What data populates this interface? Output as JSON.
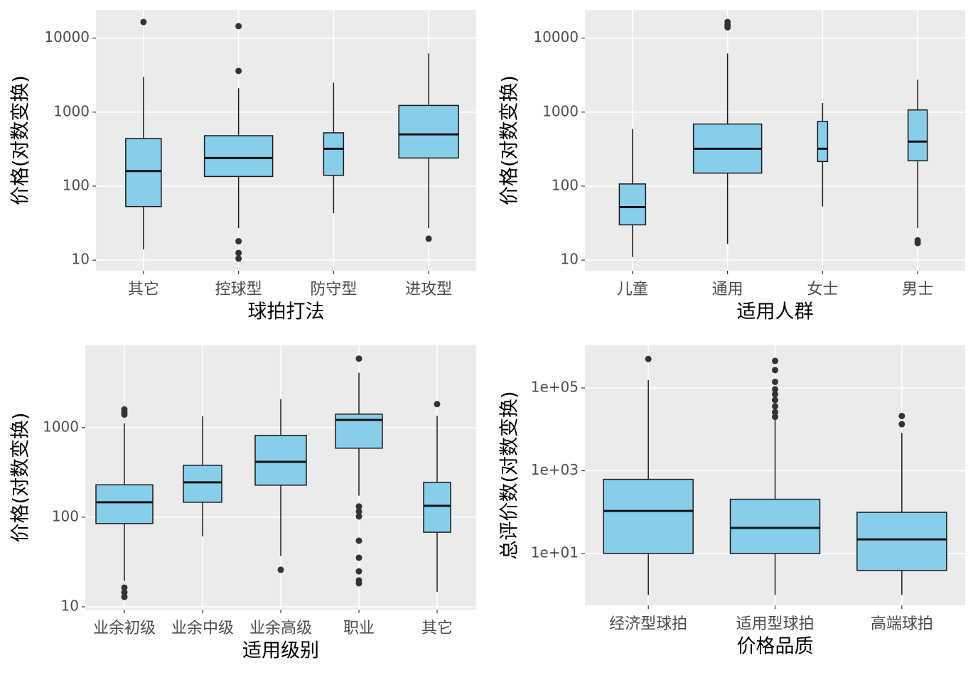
{
  "chart_data": [
    {
      "type": "box",
      "x_label": "球拍打法",
      "y_label": "价格(对数变换)",
      "log_y": true,
      "grid": true,
      "color": "#87ceeb",
      "categories": [
        "其它",
        "控球型",
        "防守型",
        "进攻型"
      ],
      "ylim": [
        7.2,
        24000
      ],
      "yticks": [
        10,
        100,
        1000,
        10000
      ],
      "boxes": [
        {
          "whislo": 14,
          "q1": 53,
          "med": 160,
          "q3": 440,
          "whishi": 3000,
          "outliers": [
            16500
          ]
        },
        {
          "whislo": 27,
          "q1": 135,
          "med": 240,
          "q3": 480,
          "whishi": 2100,
          "outliers": [
            14500,
            3600,
            18,
            12.5,
            10.5
          ]
        },
        {
          "whislo": 43,
          "q1": 140,
          "med": 320,
          "q3": 525,
          "whishi": 2500,
          "outliers": []
        },
        {
          "whislo": 27,
          "q1": 240,
          "med": 500,
          "q3": 1230,
          "whishi": 6200,
          "outliers": [
            19.5
          ]
        }
      ]
    },
    {
      "type": "box",
      "x_label": "适用人群",
      "y_label": "价格(对数变换)",
      "log_y": true,
      "grid": true,
      "color": "#87ceeb",
      "categories": [
        "儿童",
        "通用",
        "女士",
        "男士"
      ],
      "ylim": [
        7.2,
        24000
      ],
      "yticks": [
        10,
        100,
        1000,
        10000
      ],
      "boxes": [
        {
          "whislo": 11,
          "q1": 30,
          "med": 52,
          "q3": 107,
          "whishi": 590,
          "outliers": []
        },
        {
          "whislo": 16.6,
          "q1": 150,
          "med": 320,
          "q3": 690,
          "whishi": 6200,
          "outliers": [
            16500,
            15000,
            14000
          ]
        },
        {
          "whislo": 53,
          "q1": 215,
          "med": 320,
          "q3": 750,
          "whishi": 1330,
          "outliers": []
        },
        {
          "whislo": 27,
          "q1": 220,
          "med": 400,
          "q3": 1070,
          "whishi": 2750,
          "outliers": [
            18.5,
            17
          ]
        }
      ]
    },
    {
      "type": "box",
      "x_label": "适用级别",
      "y_label": "价格(对数变换)",
      "log_y": true,
      "grid": true,
      "color": "#87ceeb",
      "categories": [
        "业余初级",
        "业余中级",
        "业余高级",
        "职业",
        "其它"
      ],
      "ylim": [
        9.3,
        8300
      ],
      "yticks": [
        10,
        100,
        1000
      ],
      "boxes": [
        {
          "whislo": 19.3,
          "q1": 85,
          "med": 147,
          "q3": 230,
          "whishi": 1120,
          "outliers": [
            1600,
            1480,
            1400,
            16.4,
            14.5,
            12.9
          ]
        },
        {
          "whislo": 61,
          "q1": 147,
          "med": 245,
          "q3": 380,
          "whishi": 1340,
          "outliers": []
        },
        {
          "whislo": 37,
          "q1": 228,
          "med": 415,
          "q3": 820,
          "whishi": 2080,
          "outliers": [
            25.9
          ]
        },
        {
          "whislo": 174,
          "q1": 590,
          "med": 1220,
          "q3": 1415,
          "whishi": 4100,
          "outliers": [
            5900,
            132,
            116,
            102,
            54.7,
            35.3,
            24.9,
            19.7,
            18.3
          ]
        },
        {
          "whislo": 14.7,
          "q1": 68,
          "med": 134,
          "q3": 245,
          "whishi": 1360,
          "outliers": [
            1830
          ]
        }
      ]
    },
    {
      "type": "box",
      "x_label": "价格品质",
      "y_label": "总评价数(对数变换)",
      "log_y": true,
      "grid": true,
      "color": "#87ceeb",
      "categories": [
        "经济型球拍",
        "适用型球拍",
        "高端球拍"
      ],
      "ylim": [
        0.56,
        1070000
      ],
      "yticks": [
        {
          "value": 10,
          "label": "1e+01"
        },
        {
          "value": 1000,
          "label": "1e+03"
        },
        {
          "value": 100000,
          "label": "1e+05"
        }
      ],
      "boxes": [
        {
          "whislo": 1,
          "q1": 10,
          "med": 107,
          "q3": 620,
          "whishi": 155000,
          "outliers": [
            500000
          ]
        },
        {
          "whislo": 1,
          "q1": 10,
          "med": 41.5,
          "q3": 205,
          "whishi": 17000,
          "outliers": [
            450000,
            270000,
            140000,
            93000,
            70000,
            51000,
            36000,
            26000,
            20000
          ]
        },
        {
          "whislo": 1,
          "q1": 3.9,
          "med": 22,
          "q3": 99,
          "whishi": 8300,
          "outliers": [
            21000,
            13300
          ]
        }
      ]
    }
  ]
}
